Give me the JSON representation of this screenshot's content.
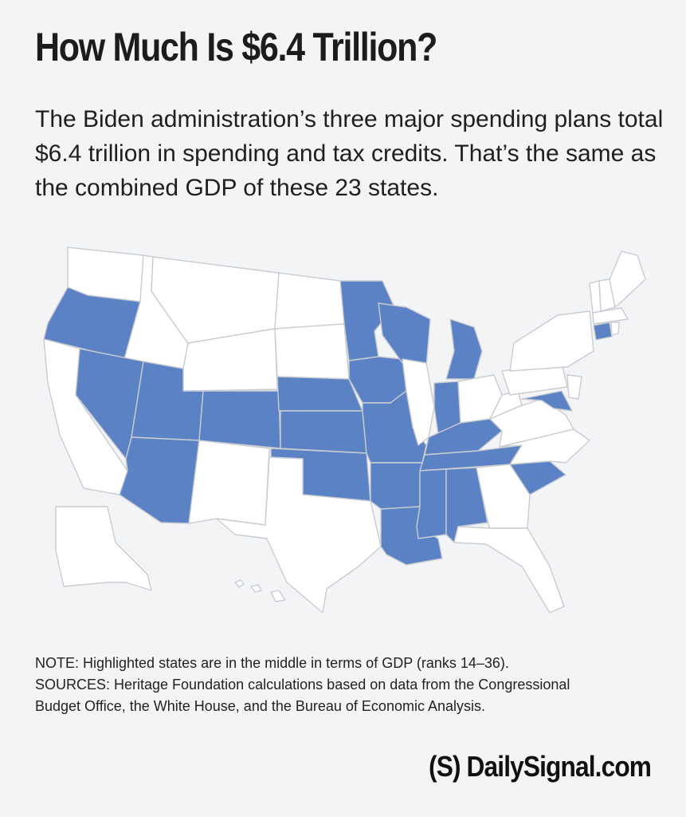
{
  "title": "How Much Is $6.4 Trillion?",
  "subtitle": "The Biden administration’s three major spending plans total $6.4 trillion in spending and tax credits. That’s the same as the combined GDP of these 23 states.",
  "colors": {
    "highlight": "#5a82c4",
    "other": "#ffffff",
    "background": "#f3f4f6",
    "border": "#c9ccd1"
  },
  "highlighted_states": [
    "Oregon",
    "Nevada",
    "Utah",
    "Arizona",
    "Colorado",
    "Nebraska",
    "Kansas",
    "Oklahoma",
    "Minnesota",
    "Iowa",
    "Missouri",
    "Arkansas",
    "Louisiana",
    "Wisconsin",
    "Michigan",
    "Indiana",
    "Kentucky",
    "Tennessee",
    "Mississippi",
    "Alabama",
    "South Carolina",
    "Maryland",
    "Connecticut"
  ],
  "note_line": "NOTE: Highlighted states are in the middle in terms of GDP (ranks 14–36).",
  "sources_line1": "SOURCES: Heritage Foundation calculations based on data from the Congressional",
  "sources_line2": "Budget Office, the White House, and the Bureau of Economic Analysis.",
  "brand": "(S) DailySignal.com"
}
